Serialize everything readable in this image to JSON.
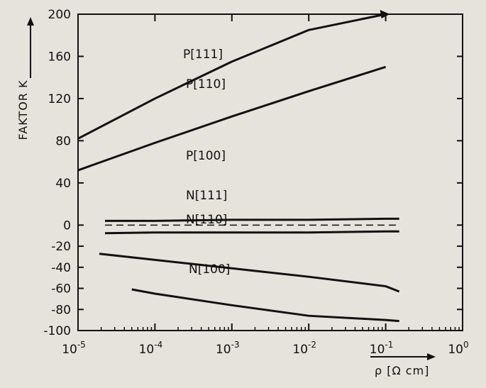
{
  "chart_data": {
    "type": "line",
    "title": "",
    "xlabel": "ρ [Ω cm]",
    "ylabel": "FAKTOR K",
    "xscale": "log",
    "xlim": [
      1e-05,
      1
    ],
    "ylim": [
      -100,
      200
    ],
    "x_ticks": [
      {
        "value": 1e-05,
        "base": "10",
        "exp": "-5"
      },
      {
        "value": 0.0001,
        "base": "10",
        "exp": "-4"
      },
      {
        "value": 0.001,
        "base": "10",
        "exp": "-3"
      },
      {
        "value": 0.01,
        "base": "10",
        "exp": "-2"
      },
      {
        "value": 0.1,
        "base": "10",
        "exp": "-1"
      },
      {
        "value": 1,
        "base": "10",
        "exp": "0"
      }
    ],
    "y_ticks": [
      200,
      160,
      120,
      80,
      40,
      0,
      -20,
      -40,
      -60,
      -80,
      -100
    ],
    "grid": false,
    "series": [
      {
        "name": "P[111]",
        "x": [
          1e-05,
          0.0001,
          0.001,
          0.01,
          0.1
        ],
        "y": [
          82,
          120,
          155,
          185,
          200
        ]
      },
      {
        "name": "P[110]",
        "x": [
          1e-05,
          0.0001,
          0.001,
          0.01,
          0.1
        ],
        "y": [
          52,
          78,
          103,
          127,
          150
        ]
      },
      {
        "name": "P[100]",
        "x": [
          1e-05,
          0.0001,
          0.001,
          0.01,
          0.1,
          0.15
        ],
        "y": [
          4,
          4,
          5,
          5,
          6,
          6
        ]
      },
      {
        "name": "N[111]",
        "x": [
          1e-05,
          0.0001,
          0.001,
          0.01,
          0.1,
          0.15
        ],
        "y": [
          -8,
          -7,
          -7,
          -7,
          -6,
          -6
        ]
      },
      {
        "name": "N[110]",
        "x": [
          1e-05,
          0.0001,
          0.001,
          0.01,
          0.1,
          0.15
        ],
        "y": [
          -25,
          -33,
          -41,
          -49,
          -58,
          -63
        ]
      },
      {
        "name": "N[100]",
        "x": [
          5e-05,
          0.0001,
          0.001,
          0.01,
          0.1,
          0.15
        ],
        "y": [
          -61,
          -65,
          -76,
          -86,
          -90,
          -91
        ]
      }
    ],
    "reference_line": {
      "y": 0,
      "style": "dashed"
    }
  }
}
